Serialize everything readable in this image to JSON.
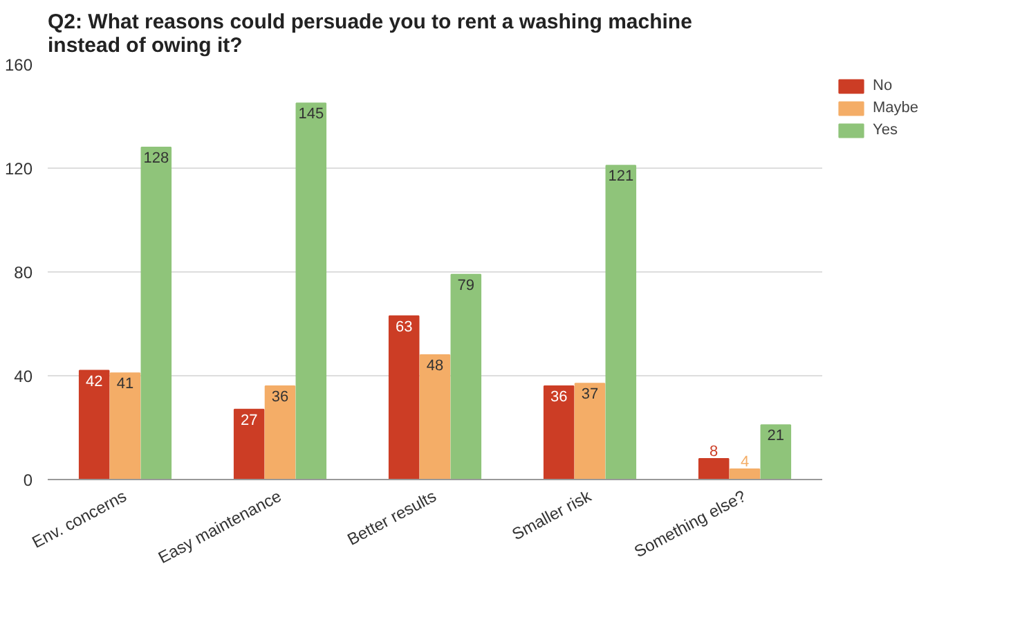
{
  "chart_data": {
    "type": "bar",
    "title": "Q2: What reasons could persuade you to rent a washing machine instead of owing it?",
    "categories": [
      "Env. concerns",
      "Easy maintenance",
      "Better results",
      "Smaller risk",
      "Something else?"
    ],
    "series": [
      {
        "name": "No",
        "color": "#cc3d25",
        "values": [
          42,
          27,
          63,
          36,
          8
        ]
      },
      {
        "name": "Maybe",
        "color": "#f4ad67",
        "values": [
          41,
          36,
          48,
          37,
          4
        ]
      },
      {
        "name": "Yes",
        "color": "#8fc47a",
        "values": [
          128,
          145,
          79,
          121,
          21
        ]
      }
    ],
    "ylim": [
      0,
      160
    ],
    "yticks": [
      0,
      40,
      80,
      120,
      160
    ],
    "grid": "y",
    "legend": "top right",
    "data_labels": true
  }
}
